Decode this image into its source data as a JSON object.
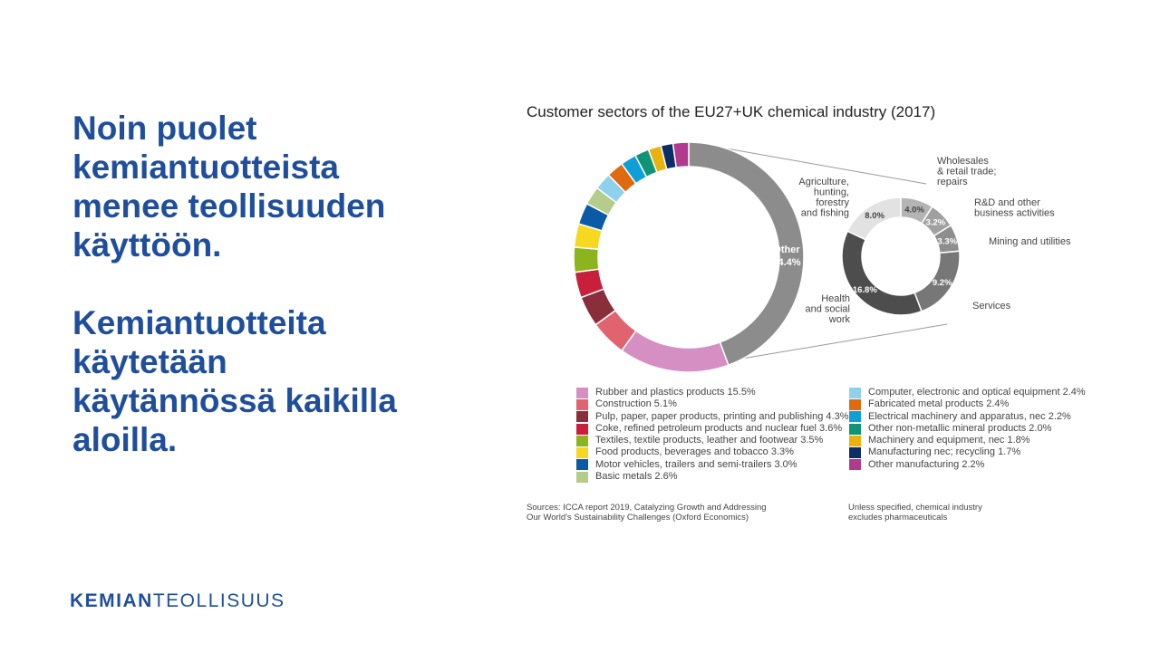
{
  "headline": {
    "paragraph1": "Noin puolet kemiantuotteista menee teollisuuden käyttöön.",
    "paragraph2": "Kemiantuotteita käytetään käytännössä kaikilla aloilla."
  },
  "logo": {
    "part1": "KEMIAN",
    "part2": "TEOLLISUUS"
  },
  "chart_data": {
    "type": "pie",
    "title": "Customer sectors of the EU27+UK chemical industry (2017)",
    "main_donut": {
      "slices": [
        {
          "label": "Other",
          "value": 44.4,
          "value_label": "44.4%",
          "color": "#8c8c8c"
        },
        {
          "label": "Rubber and plastics products",
          "value": 15.5,
          "color": "#d58fc3"
        },
        {
          "label": "Construction",
          "value": 5.1,
          "color": "#e0636f"
        },
        {
          "label": "Pulp, paper, paper products, printing and publishing",
          "value": 4.3,
          "color": "#8b2e3c"
        },
        {
          "label": "Coke, refined petroleum products and nuclear fuel",
          "value": 3.6,
          "color": "#c8203b"
        },
        {
          "label": "Textiles, textile products, leather and footwear",
          "value": 3.5,
          "color": "#8cb41e"
        },
        {
          "label": "Food products, beverages and tobacco",
          "value": 3.3,
          "color": "#f5d81f"
        },
        {
          "label": "Motor vehicles, trailers and semi-trailers",
          "value": 3.0,
          "color": "#0a5aa8"
        },
        {
          "label": "Basic metals",
          "value": 2.6,
          "color": "#b5cc8a"
        },
        {
          "label": "Computer, electronic and optical equipment",
          "value": 2.4,
          "color": "#8fd0ec"
        },
        {
          "label": "Fabricated metal products",
          "value": 2.4,
          "color": "#e06a0f"
        },
        {
          "label": "Electrical machinery and apparatus, nec",
          "value": 2.2,
          "color": "#0e9fd8"
        },
        {
          "label": "Other non-metallic mineral products",
          "value": 2.0,
          "color": "#0f9575"
        },
        {
          "label": "Machinery and equipment, nec",
          "value": 1.8,
          "color": "#e8b20f"
        },
        {
          "label": "Manufacturing nec; recycling",
          "value": 1.7,
          "color": "#0b2e68"
        },
        {
          "label": "Other manufacturing",
          "value": 2.2,
          "color": "#b23a8e"
        }
      ]
    },
    "other_breakdown": {
      "slices": [
        {
          "label": "Wholesales & retail trade; repairs",
          "value": 4.0,
          "value_label": "4.0%",
          "color": "#b4b4b4"
        },
        {
          "label": "R&D and other business activities",
          "value": 3.2,
          "value_label": "3.2%",
          "color": "#a0a0a0"
        },
        {
          "label": "Mining and utilities",
          "value": 3.3,
          "value_label": "3.3%",
          "color": "#8e8e8e"
        },
        {
          "label": "Services",
          "value": 9.2,
          "value_label": "9.2%",
          "color": "#777777"
        },
        {
          "label": "Health and social work",
          "value": 16.8,
          "value_label": "16.8%",
          "color": "#4d4d4d"
        },
        {
          "label": "Agriculture, hunting, forestry and fishing",
          "value": 8.0,
          "value_label": "8.0%",
          "color": "#e2e2e2"
        }
      ],
      "category_labels": {
        "wholesale": [
          "Wholesales",
          "& retail trade;",
          "repairs"
        ],
        "rd": [
          "R&D and other",
          "business activities"
        ],
        "mining": [
          "Mining and utilities"
        ],
        "services": [
          "Services"
        ],
        "health": [
          "Health",
          "and social",
          "work"
        ],
        "agriculture": [
          "Agriculture,",
          "hunting,",
          "forestry",
          "and fishing"
        ]
      }
    },
    "legend_left": [
      {
        "text": "Rubber and plastics products 15.5%",
        "color": "#d58fc3"
      },
      {
        "text": "Construction 5.1%",
        "color": "#e0636f"
      },
      {
        "text": "Pulp, paper, paper products, printing and publishing 4.3%",
        "color": "#8b2e3c"
      },
      {
        "text": "Coke, refined petroleum products and nuclear fuel 3.6%",
        "color": "#c8203b"
      },
      {
        "text": "Textiles, textile products, leather and footwear 3.5%",
        "color": "#8cb41e"
      },
      {
        "text": "Food products, beverages and tobacco 3.3%",
        "color": "#f5d81f"
      },
      {
        "text": "Motor vehicles, trailers and semi-trailers 3.0%",
        "color": "#0a5aa8"
      },
      {
        "text": "Basic metals 2.6%",
        "color": "#b5cc8a"
      }
    ],
    "legend_right": [
      {
        "text": "Computer, electronic and optical equipment 2.4%",
        "color": "#8fd0ec"
      },
      {
        "text": "Fabricated metal products 2.4%",
        "color": "#e06a0f"
      },
      {
        "text": "Electrical machinery and apparatus, nec 2.2%",
        "color": "#0e9fd8"
      },
      {
        "text": "Other non-metallic mineral products 2.0%",
        "color": "#0f9575"
      },
      {
        "text": "Machinery and equipment, nec 1.8%",
        "color": "#e8b20f"
      },
      {
        "text": "Manufacturing nec; recycling 1.7%",
        "color": "#0b2e68"
      },
      {
        "text": "Other manufacturing 2.2%",
        "color": "#b23a8e"
      }
    ],
    "sources": {
      "left": [
        "Sources: ICCA report 2019, Catalyzing Growth and Addressing",
        "Our World's Sustainability Challenges (Oxford Economics)"
      ],
      "right": [
        "Unless specified, chemical industry",
        "excludes pharmaceuticals"
      ]
    }
  }
}
